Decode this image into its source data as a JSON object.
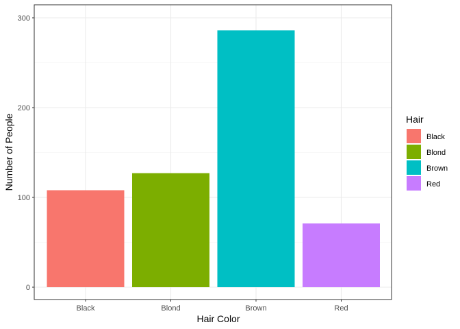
{
  "chart_data": {
    "type": "bar",
    "title": "",
    "xlabel": "Hair Color",
    "ylabel": "Number of People",
    "categories": [
      "Black",
      "Blond",
      "Brown",
      "Red"
    ],
    "values": [
      108,
      127,
      286,
      71
    ],
    "ylim": [
      0,
      300
    ],
    "yticks": [
      0,
      100,
      200,
      300
    ],
    "colors": [
      "#F8766D",
      "#7CAE00",
      "#00BFC4",
      "#C77CFF"
    ],
    "grid": true,
    "legend": {
      "title": "Hair",
      "position": "right",
      "entries": [
        "Black",
        "Blond",
        "Brown",
        "Red"
      ]
    }
  }
}
